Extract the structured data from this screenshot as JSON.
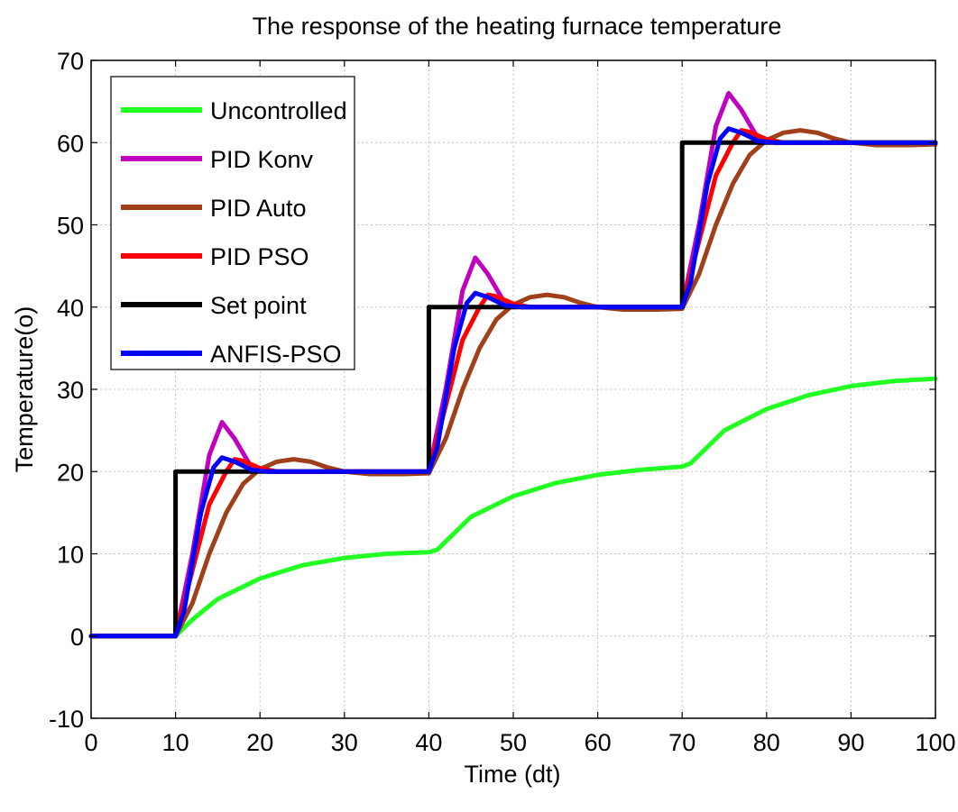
{
  "chart_data": {
    "type": "line",
    "title": "The response of the heating furnace temperature",
    "xlabel": "Time (dt)",
    "ylabel": "Temperature(o)",
    "xlim": [
      0,
      100
    ],
    "ylim": [
      -10,
      70
    ],
    "xticks": [
      "0",
      "10",
      "20",
      "30",
      "40",
      "50",
      "60",
      "70",
      "80",
      "90",
      "100"
    ],
    "yticks": [
      "-10",
      "0",
      "10",
      "20",
      "30",
      "40",
      "50",
      "60",
      "70"
    ],
    "grid": true,
    "legend_position": "top-left",
    "series": [
      {
        "name": "Uncontrolled",
        "color": "#22ff22",
        "points": [
          [
            0,
            0
          ],
          [
            10,
            0
          ],
          [
            12,
            2
          ],
          [
            15,
            4.5
          ],
          [
            20,
            7
          ],
          [
            25,
            8.6
          ],
          [
            30,
            9.5
          ],
          [
            35,
            10
          ],
          [
            40,
            10.2
          ],
          [
            41,
            10.5
          ],
          [
            43,
            12.5
          ],
          [
            45,
            14.5
          ],
          [
            50,
            17
          ],
          [
            55,
            18.6
          ],
          [
            60,
            19.6
          ],
          [
            65,
            20.2
          ],
          [
            70,
            20.6
          ],
          [
            71,
            21
          ],
          [
            73,
            23
          ],
          [
            75,
            25
          ],
          [
            80,
            27.6
          ],
          [
            85,
            29.3
          ],
          [
            90,
            30.4
          ],
          [
            95,
            31
          ],
          [
            100,
            31.3
          ]
        ]
      },
      {
        "name": "PID Konv",
        "color": "#c000c0",
        "points": [
          [
            0,
            0
          ],
          [
            10,
            0
          ],
          [
            12,
            10
          ],
          [
            14,
            22
          ],
          [
            15.5,
            26
          ],
          [
            17,
            24
          ],
          [
            19,
            20.5
          ],
          [
            21,
            20
          ],
          [
            25,
            20
          ],
          [
            30,
            20
          ],
          [
            40,
            20
          ],
          [
            42,
            30
          ],
          [
            44,
            42
          ],
          [
            45.5,
            46
          ],
          [
            47,
            44
          ],
          [
            49,
            40.5
          ],
          [
            51,
            40
          ],
          [
            55,
            40
          ],
          [
            60,
            40
          ],
          [
            70,
            40
          ],
          [
            72,
            50
          ],
          [
            74,
            62
          ],
          [
            75.5,
            66
          ],
          [
            77,
            64
          ],
          [
            79,
            60.5
          ],
          [
            81,
            60
          ],
          [
            90,
            60
          ],
          [
            100,
            60
          ]
        ]
      },
      {
        "name": "PID Auto",
        "color": "#a0401a",
        "points": [
          [
            0,
            0
          ],
          [
            10,
            0
          ],
          [
            12,
            4
          ],
          [
            14,
            10
          ],
          [
            16,
            15
          ],
          [
            18,
            18.5
          ],
          [
            20,
            20.3
          ],
          [
            22,
            21.2
          ],
          [
            24,
            21.5
          ],
          [
            26,
            21.2
          ],
          [
            28,
            20.5
          ],
          [
            30,
            20
          ],
          [
            33,
            19.7
          ],
          [
            37,
            19.7
          ],
          [
            40,
            19.8
          ],
          [
            42,
            24
          ],
          [
            44,
            30
          ],
          [
            46,
            35
          ],
          [
            48,
            38.5
          ],
          [
            50,
            40.3
          ],
          [
            52,
            41.2
          ],
          [
            54,
            41.5
          ],
          [
            56,
            41.2
          ],
          [
            58,
            40.5
          ],
          [
            60,
            40
          ],
          [
            63,
            39.7
          ],
          [
            67,
            39.7
          ],
          [
            70,
            39.8
          ],
          [
            72,
            44
          ],
          [
            74,
            50
          ],
          [
            76,
            55
          ],
          [
            78,
            58.5
          ],
          [
            80,
            60.3
          ],
          [
            82,
            61.2
          ],
          [
            84,
            61.5
          ],
          [
            86,
            61.2
          ],
          [
            88,
            60.5
          ],
          [
            90,
            60
          ],
          [
            93,
            59.7
          ],
          [
            97,
            59.7
          ],
          [
            100,
            59.8
          ]
        ]
      },
      {
        "name": "PID PSO",
        "color": "#ff0000",
        "points": [
          [
            0,
            0
          ],
          [
            10,
            0
          ],
          [
            12,
            8
          ],
          [
            14,
            16
          ],
          [
            16,
            20
          ],
          [
            17,
            21.5
          ],
          [
            18,
            21.3
          ],
          [
            20,
            20.4
          ],
          [
            22,
            20
          ],
          [
            30,
            20
          ],
          [
            40,
            20
          ],
          [
            42,
            28
          ],
          [
            44,
            36
          ],
          [
            46,
            40
          ],
          [
            47,
            41.5
          ],
          [
            48,
            41.3
          ],
          [
            50,
            40.4
          ],
          [
            52,
            40
          ],
          [
            60,
            40
          ],
          [
            70,
            40
          ],
          [
            72,
            48
          ],
          [
            74,
            56
          ],
          [
            76,
            60
          ],
          [
            77,
            61.5
          ],
          [
            78,
            61.3
          ],
          [
            80,
            60.4
          ],
          [
            82,
            60
          ],
          [
            90,
            60
          ],
          [
            100,
            60
          ]
        ]
      },
      {
        "name": "Set point",
        "color": "#000000",
        "points": [
          [
            0,
            0
          ],
          [
            10,
            0
          ],
          [
            10,
            20
          ],
          [
            40,
            20
          ],
          [
            40,
            40
          ],
          [
            70,
            40
          ],
          [
            70,
            60
          ],
          [
            100,
            60
          ]
        ]
      },
      {
        "name": "ANFIS-PSO",
        "color": "#0000ff",
        "points": [
          [
            0,
            0
          ],
          [
            10,
            0
          ],
          [
            11,
            3
          ],
          [
            13,
            15
          ],
          [
            14.5,
            20.5
          ],
          [
            15.5,
            21.7
          ],
          [
            17,
            21.2
          ],
          [
            19,
            20.2
          ],
          [
            21,
            20
          ],
          [
            30,
            20
          ],
          [
            40,
            20
          ],
          [
            41,
            23
          ],
          [
            43,
            35
          ],
          [
            44.5,
            40.5
          ],
          [
            45.5,
            41.7
          ],
          [
            47,
            41.2
          ],
          [
            49,
            40.2
          ],
          [
            51,
            40
          ],
          [
            60,
            40
          ],
          [
            70,
            40
          ],
          [
            71,
            43
          ],
          [
            73,
            55
          ],
          [
            74.5,
            60.5
          ],
          [
            75.5,
            61.7
          ],
          [
            77,
            61.2
          ],
          [
            79,
            60.2
          ],
          [
            81,
            60
          ],
          [
            90,
            60
          ],
          [
            100,
            60
          ]
        ]
      }
    ]
  }
}
